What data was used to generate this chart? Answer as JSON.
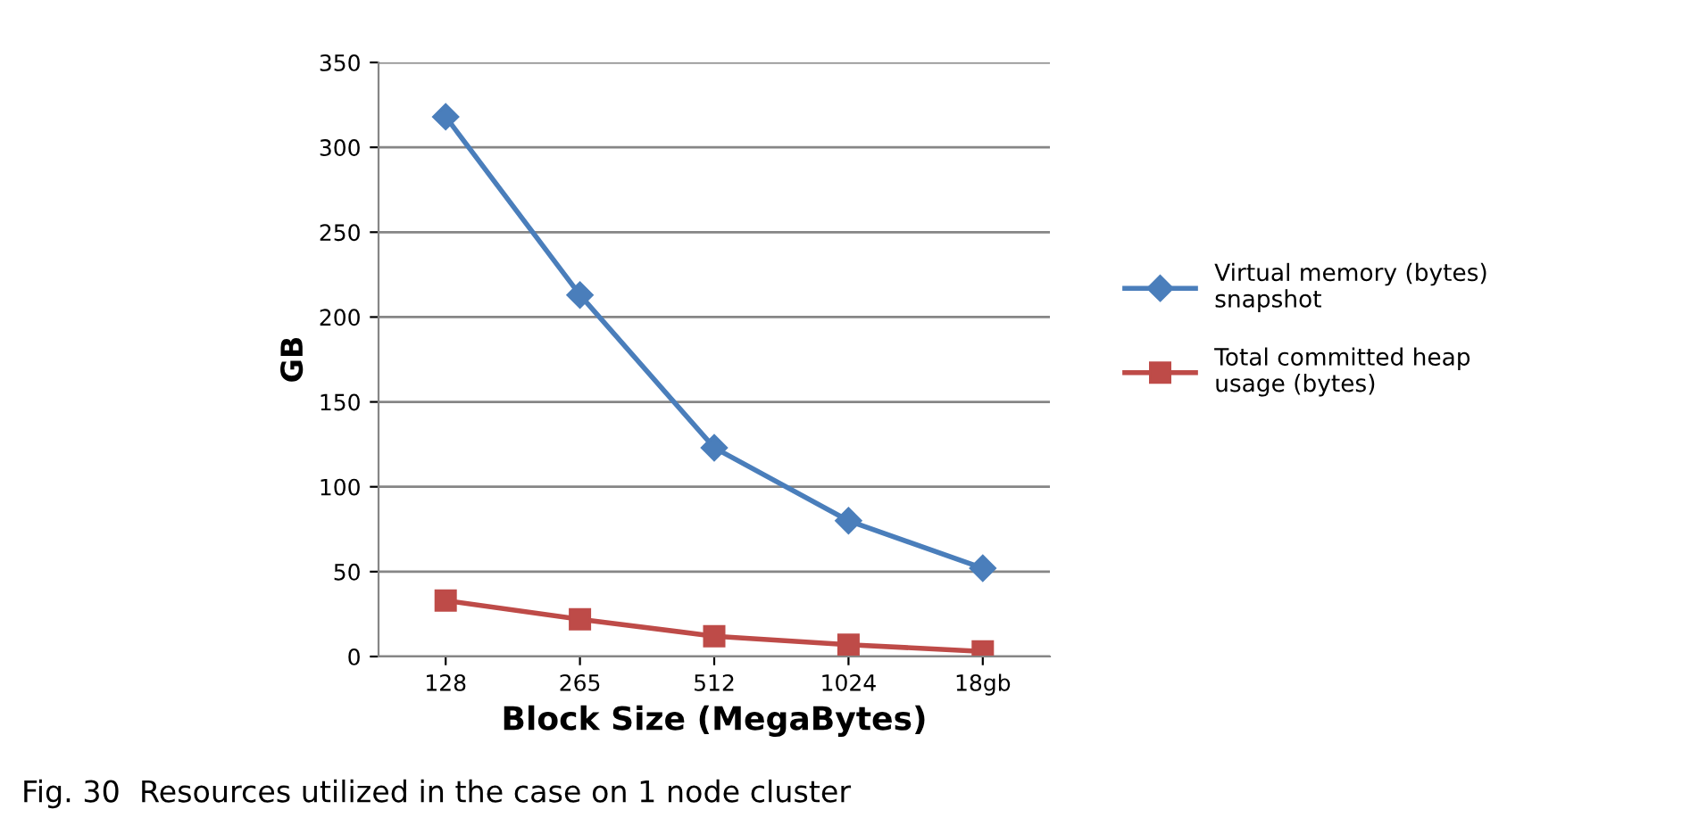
{
  "chart_data": {
    "type": "line",
    "xlabel": "Block Size (MegaBytes)",
    "ylabel": "GB",
    "categories": [
      "128",
      "265",
      "512",
      "1024",
      "18gb"
    ],
    "series": [
      {
        "name": "Virtual memory (bytes) snapshot",
        "color": "#4a7ebb",
        "marker": "diamond",
        "values": [
          318,
          213,
          123,
          80,
          52
        ]
      },
      {
        "name": "Total committed heap usage (bytes)",
        "color": "#be4b48",
        "marker": "square",
        "values": [
          33,
          22,
          12,
          7,
          3
        ]
      }
    ],
    "ylim": [
      0,
      350
    ],
    "yticks": [
      0,
      50,
      100,
      150,
      200,
      250,
      300,
      350
    ],
    "grid": "y",
    "legend": "right",
    "annotations": [
      "Fig. 30  Resources utilized in the case on 1 node cluster"
    ]
  }
}
